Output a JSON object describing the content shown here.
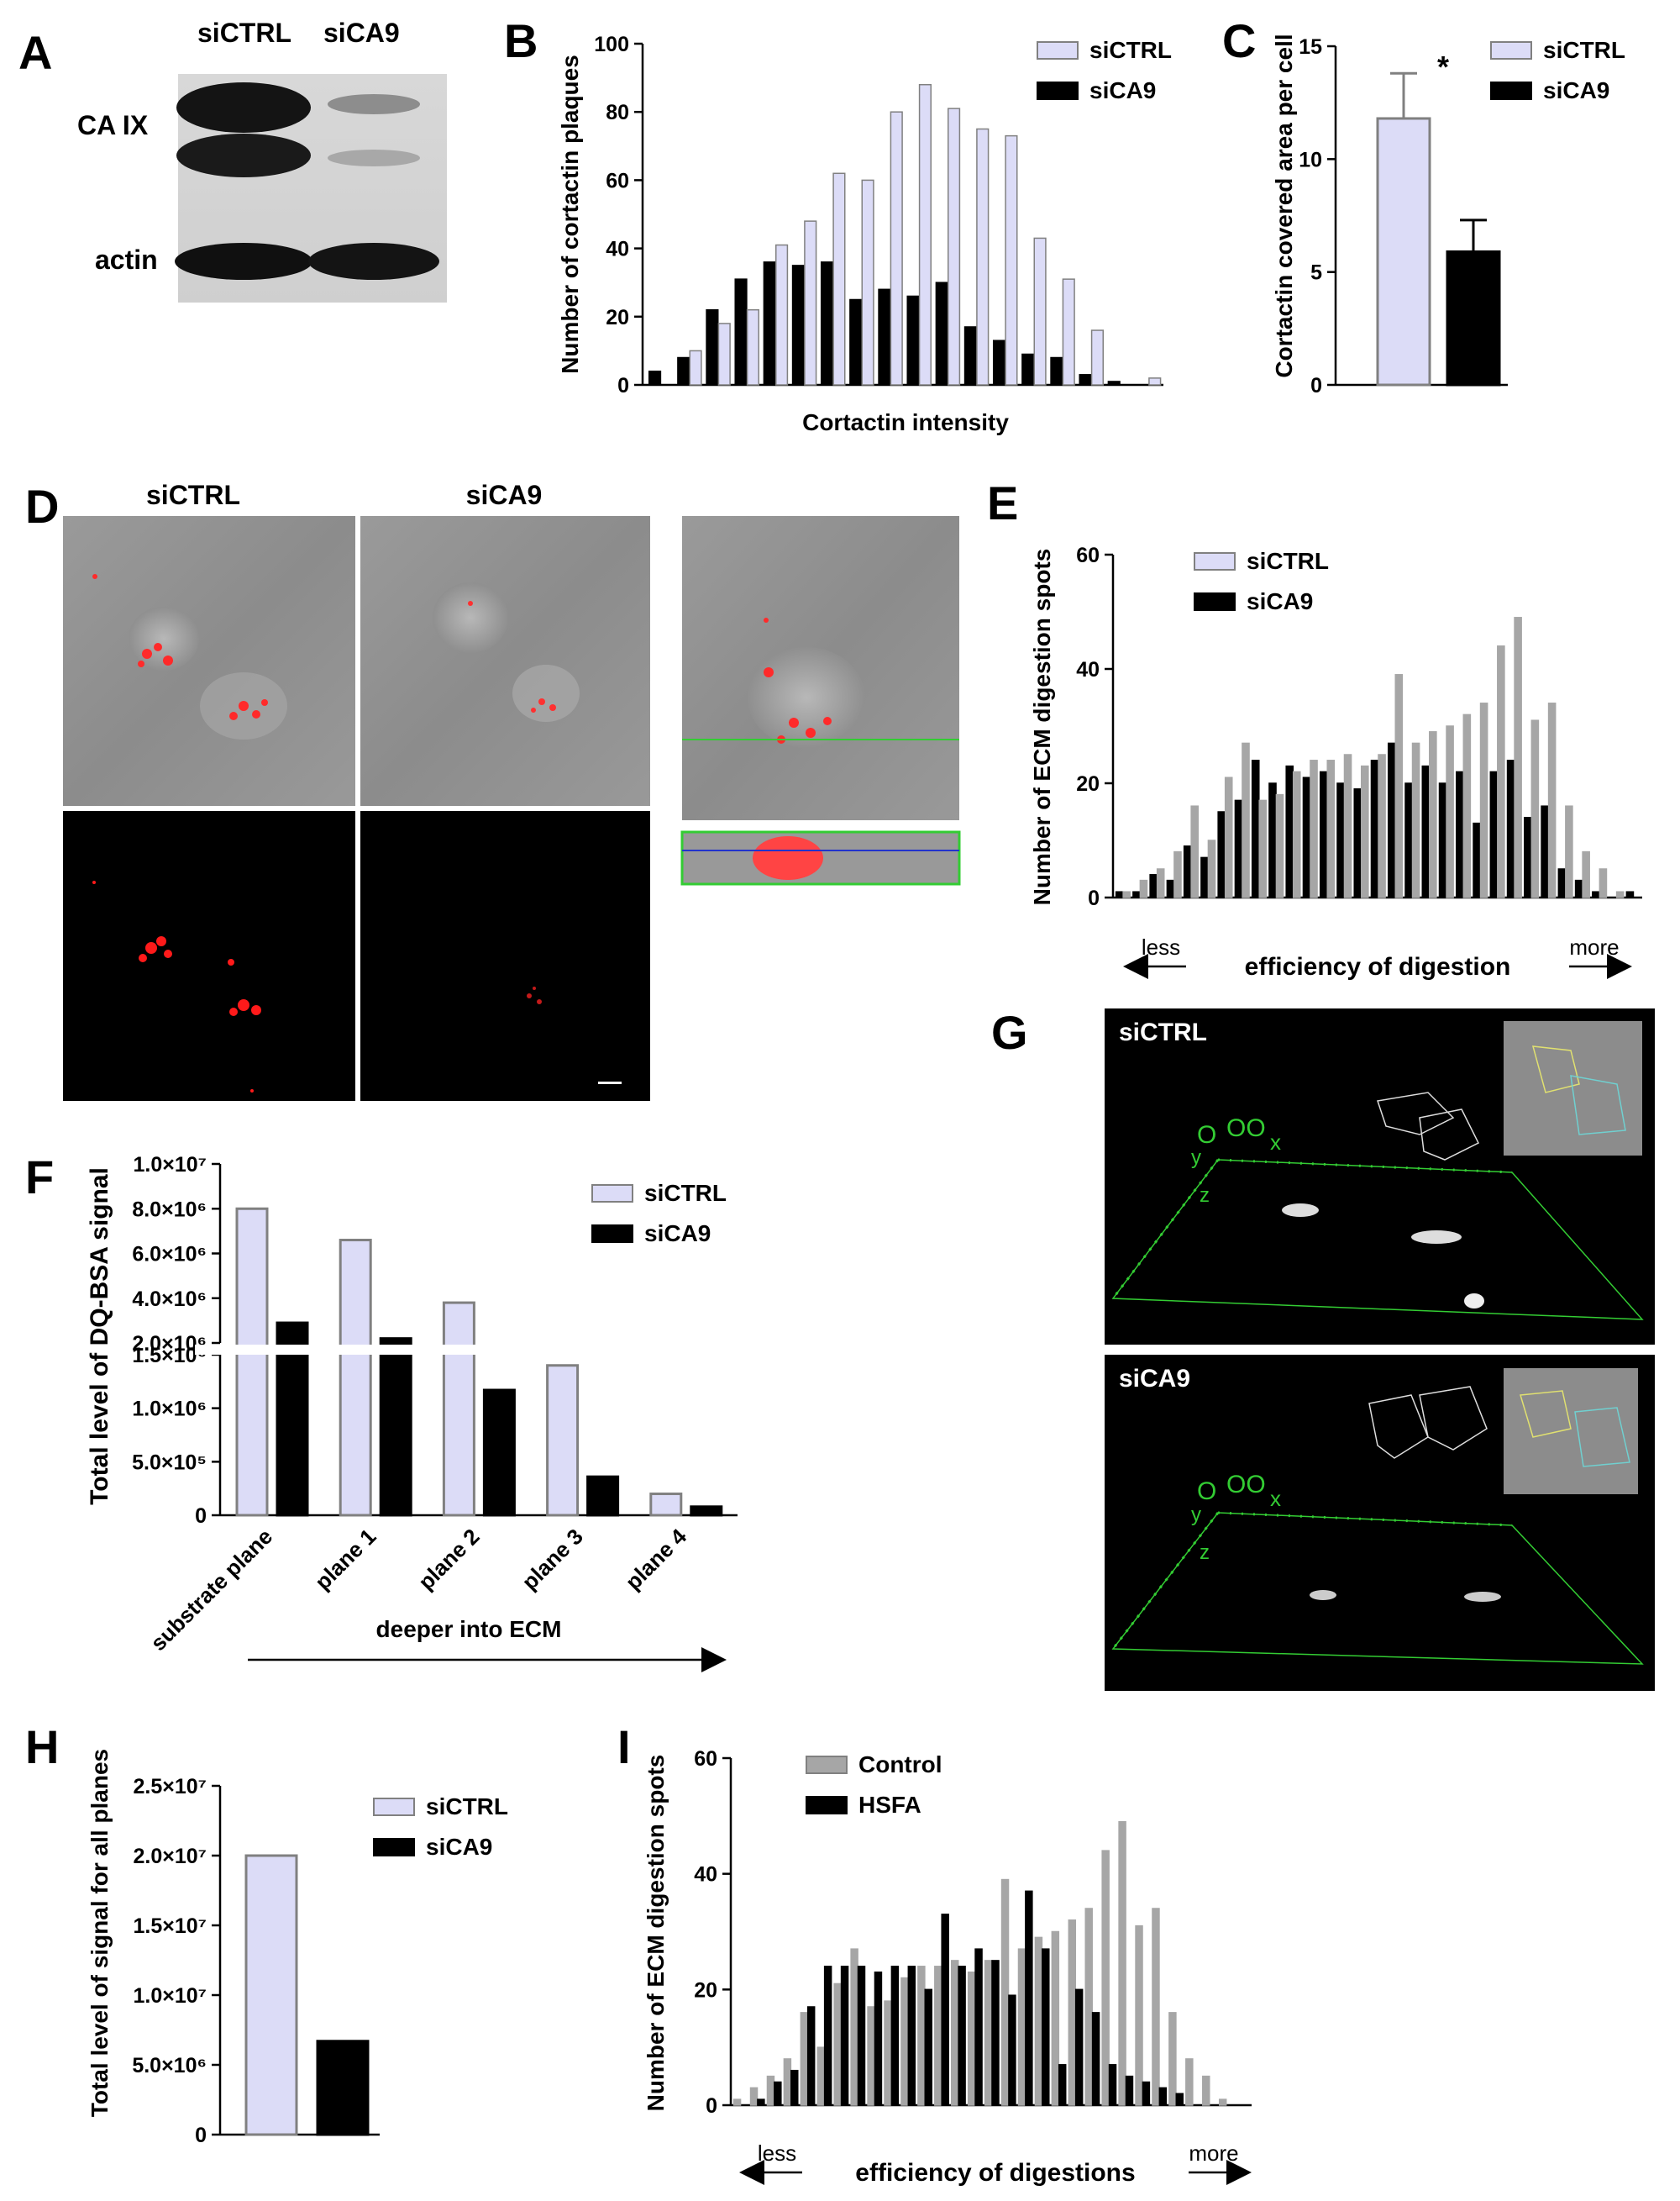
{
  "colors": {
    "siCTRL": "#dcdcf7",
    "siCTRL_stroke": "#808080",
    "siCA9": "#000000",
    "control": "#a6a6a6",
    "hsfa": "#000000",
    "green": "#33cc33"
  },
  "panel_labels": [
    "A",
    "B",
    "C",
    "D",
    "E",
    "F",
    "G",
    "H",
    "I"
  ],
  "panel_a": {
    "lanes": [
      "siCTRL",
      "siCA9"
    ],
    "rows": [
      "CA IX",
      "actin"
    ]
  },
  "panel_d": {
    "columns": [
      "siCTRL",
      "siCA9"
    ]
  },
  "panel_g": {
    "images": [
      "siCTRL",
      "siCA9"
    ],
    "axis_letters": [
      "x",
      "y",
      "z"
    ]
  },
  "chart_data": [
    {
      "id": "B",
      "type": "bar",
      "xlabel": "Cortactin intensity",
      "ylabel": "Number of cortactin plaques",
      "ylim": [
        0,
        100
      ],
      "yticks": [
        0,
        20,
        40,
        60,
        80,
        100
      ],
      "legend": "top-right",
      "series": [
        {
          "name": "siCTRL",
          "values": [
            0,
            10,
            18,
            22,
            41,
            48,
            62,
            60,
            80,
            88,
            81,
            75,
            73,
            43,
            31,
            16,
            0,
            2
          ]
        },
        {
          "name": "siCA9",
          "values": [
            4,
            8,
            22,
            31,
            36,
            35,
            36,
            25,
            28,
            26,
            30,
            17,
            13,
            9,
            8,
            3,
            1,
            0
          ]
        }
      ]
    },
    {
      "id": "C",
      "type": "bar",
      "ylabel": "Cortactin covered area per cell",
      "ylim": [
        0,
        15
      ],
      "yticks": [
        0,
        5,
        10,
        15
      ],
      "legend": "top-right",
      "annotation": "*",
      "series": [
        {
          "name": "siCTRL",
          "values": [
            11.8
          ],
          "error": [
            2.0
          ]
        },
        {
          "name": "siCA9",
          "values": [
            5.9
          ],
          "error": [
            1.4
          ]
        }
      ]
    },
    {
      "id": "E",
      "type": "bar",
      "ylabel": "Number of ECM digestion spots",
      "xlabel": "efficiency of digestion",
      "x_arrow_left": "less",
      "x_arrow_right": "more",
      "ylim": [
        0,
        60
      ],
      "yticks": [
        0,
        20,
        40,
        60
      ],
      "legend": "top-left",
      "series": [
        {
          "name": "siCTRL",
          "values": [
            1,
            3,
            5,
            8,
            16,
            10,
            21,
            27,
            17,
            18,
            22,
            24,
            24,
            25,
            23,
            25,
            39,
            27,
            29,
            30,
            32,
            34,
            44,
            49,
            31,
            34,
            16,
            8,
            5,
            1,
            0
          ]
        },
        {
          "name": "siCA9",
          "values": [
            1,
            1,
            4,
            3,
            9,
            7,
            15,
            17,
            24,
            20,
            23,
            21,
            22,
            20,
            19,
            24,
            27,
            20,
            23,
            20,
            22,
            13,
            22,
            24,
            14,
            16,
            5,
            3,
            1,
            0,
            1
          ]
        }
      ]
    },
    {
      "id": "F",
      "type": "bar",
      "ylabel": "Total level of DQ-BSA signal",
      "xlabel": "deeper into ECM",
      "categories": [
        "substrate plane",
        "plane 1",
        "plane 2",
        "plane 3",
        "plane 4"
      ],
      "axis_break": true,
      "upper_yticks": [
        "2.0×10⁶",
        "4.0×10⁶",
        "6.0×10⁶",
        "8.0×10⁶",
        "1.0×10⁷"
      ],
      "lower_yticks": [
        "0",
        "5.0×10⁵",
        "1.0×10⁶",
        "1.5×10⁶"
      ],
      "legend": "top-right",
      "series": [
        {
          "name": "siCTRL",
          "values": [
            8000000,
            6600000,
            3800000,
            1400000,
            200000
          ]
        },
        {
          "name": "siCA9",
          "values": [
            2900000,
            2200000,
            1170000,
            360000,
            80000
          ]
        }
      ]
    },
    {
      "id": "H",
      "type": "bar",
      "ylabel": "Total level of signal for all planes",
      "ylim": [
        0,
        25000000
      ],
      "yticks": [
        "0",
        "5.0×10⁶",
        "1.0×10⁷",
        "1.5×10⁷",
        "2.0×10⁷",
        "2.5×10⁷"
      ],
      "legend": "top-right",
      "series": [
        {
          "name": "siCTRL",
          "values": [
            20000000
          ]
        },
        {
          "name": "siCA9",
          "values": [
            6700000
          ]
        }
      ]
    },
    {
      "id": "I",
      "type": "bar",
      "ylabel": "Number of ECM digestion spots",
      "xlabel": "efficiency of digestions",
      "x_arrow_left": "less",
      "x_arrow_right": "more",
      "ylim": [
        0,
        60
      ],
      "yticks": [
        0,
        20,
        40,
        60
      ],
      "legend": "top-left",
      "series": [
        {
          "name": "Control",
          "values": [
            1,
            3,
            5,
            8,
            16,
            10,
            21,
            27,
            17,
            18,
            22,
            24,
            24,
            25,
            23,
            25,
            39,
            27,
            29,
            30,
            32,
            34,
            44,
            49,
            31,
            34,
            16,
            8,
            5,
            1,
            0
          ]
        },
        {
          "name": "HSFA",
          "values": [
            0,
            1,
            4,
            6,
            17,
            24,
            24,
            24,
            23,
            24,
            24,
            20,
            33,
            24,
            27,
            25,
            19,
            37,
            27,
            7,
            20,
            16,
            7,
            5,
            4,
            3,
            2,
            0,
            0,
            0,
            0
          ]
        }
      ]
    }
  ]
}
